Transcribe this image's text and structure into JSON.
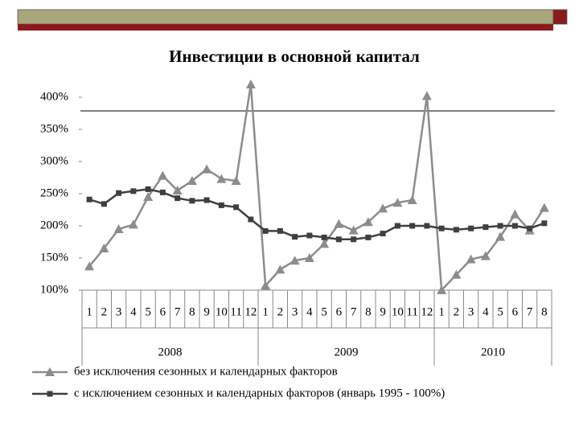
{
  "chart_data": {
    "type": "line",
    "title": "Инвестиции в основной капитал",
    "categories": [
      "1",
      "2",
      "3",
      "4",
      "5",
      "6",
      "7",
      "8",
      "9",
      "10",
      "11",
      "12",
      "1",
      "2",
      "3",
      "4",
      "5",
      "6",
      "7",
      "8",
      "9",
      "10",
      "11",
      "12",
      "1",
      "2",
      "3",
      "4",
      "5",
      "6",
      "7",
      "8"
    ],
    "years": [
      "2008",
      "2009",
      "2010"
    ],
    "series": [
      {
        "name": "без исключения сезонных и календарных факторов",
        "color": "#8c8c8c",
        "marker": "triangle",
        "values": [
          137,
          165,
          195,
          202,
          245,
          278,
          255,
          270,
          288,
          273,
          270,
          420,
          107,
          132,
          146,
          150,
          172,
          203,
          193,
          206,
          227,
          236,
          240,
          402,
          100,
          124,
          148,
          153,
          183,
          218,
          193,
          228
        ]
      },
      {
        "name": "с исключением сезонных и календарных факторов (январь 1995 - 100%)",
        "color": "#3f3f3f",
        "marker": "square",
        "values": [
          241,
          234,
          251,
          254,
          257,
          252,
          243,
          239,
          240,
          232,
          229,
          210,
          192,
          192,
          183,
          185,
          182,
          179,
          179,
          182,
          188,
          200,
          200,
          200,
          196,
          194,
          196,
          198,
          200,
          200,
          196,
          204
        ]
      }
    ],
    "ylim": [
      100,
      425
    ],
    "yticks": [
      {
        "value": 100,
        "label": "100%"
      },
      {
        "value": 150,
        "label": "150%"
      },
      {
        "value": 200,
        "label": "200%"
      },
      {
        "value": 250,
        "label": "250%"
      },
      {
        "value": 300,
        "label": "300%"
      },
      {
        "value": 350,
        "label": "350%"
      },
      {
        "value": 400,
        "label": "400%"
      }
    ],
    "grid": false
  }
}
